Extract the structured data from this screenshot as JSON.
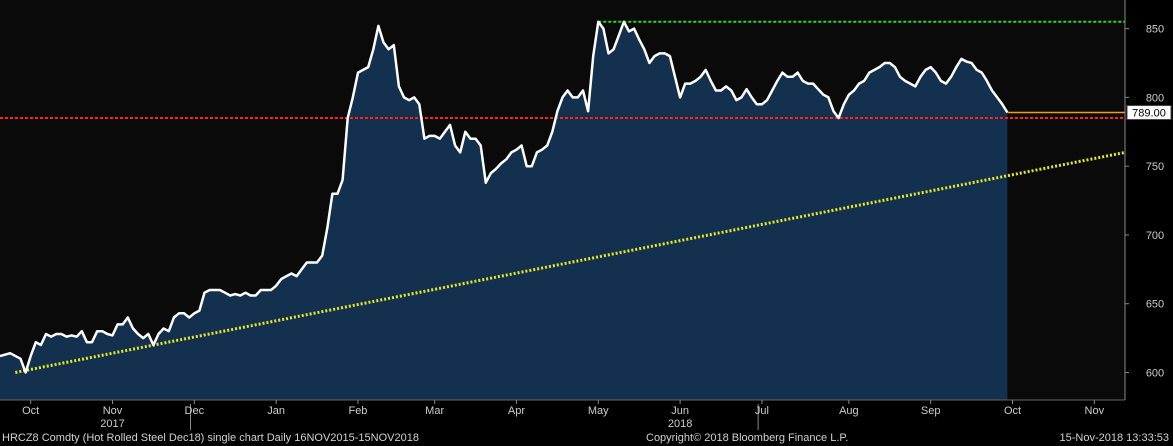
{
  "footer": {
    "left": "HRCZ8 Comdty (Hot Rolled Steel  Dec18) single chart  Daily 16NOV2015-15NOV2018",
    "center": "Copyright© 2018 Bloomberg Finance L.P.",
    "right": "15-Nov-2018 13:33:53"
  },
  "colors": {
    "background": "#000000",
    "plot_background": "#0a0a0a",
    "area_fill": "#14304f",
    "price_line": "#ffffff",
    "support_line": "#ff2020",
    "high_line": "#22dd22",
    "trend_line": "#e8e820",
    "last_marker": "#e8a020",
    "axis_text": "#cccccc"
  },
  "chart_data": {
    "type": "area",
    "series": [
      {
        "values": [
          [
            0,
            612
          ],
          [
            2,
            614
          ],
          [
            4,
            610
          ],
          [
            5,
            600
          ],
          [
            6,
            612
          ],
          [
            7,
            622
          ],
          [
            8,
            620
          ],
          [
            9,
            628
          ],
          [
            10,
            626
          ],
          [
            11,
            628
          ],
          [
            12,
            628
          ],
          [
            13,
            626
          ],
          [
            14,
            627
          ],
          [
            15,
            626
          ],
          [
            16,
            630
          ],
          [
            17,
            622
          ],
          [
            18,
            622
          ],
          [
            19,
            630
          ],
          [
            20,
            630
          ],
          [
            21,
            628
          ],
          [
            22,
            627
          ],
          [
            23,
            635
          ],
          [
            24,
            635
          ],
          [
            25,
            640
          ],
          [
            26,
            632
          ],
          [
            27,
            628
          ],
          [
            28,
            625
          ],
          [
            29,
            628
          ],
          [
            30,
            620
          ],
          [
            31,
            628
          ],
          [
            32,
            632
          ],
          [
            33,
            630
          ],
          [
            34,
            640
          ],
          [
            35,
            643
          ],
          [
            36,
            643
          ],
          [
            37,
            640
          ],
          [
            38,
            643
          ],
          [
            39,
            645
          ],
          [
            40,
            658
          ],
          [
            41,
            660
          ],
          [
            42,
            660
          ],
          [
            43,
            660
          ],
          [
            44,
            658
          ],
          [
            45,
            656
          ],
          [
            46,
            657
          ],
          [
            47,
            656
          ],
          [
            48,
            658
          ],
          [
            49,
            656
          ],
          [
            50,
            656
          ],
          [
            51,
            660
          ],
          [
            52,
            660
          ],
          [
            53,
            660
          ],
          [
            54,
            663
          ],
          [
            55,
            668
          ],
          [
            56,
            670
          ],
          [
            57,
            672
          ],
          [
            58,
            670
          ],
          [
            59,
            675
          ],
          [
            60,
            680
          ],
          [
            61,
            680
          ],
          [
            62,
            680
          ],
          [
            63,
            685
          ],
          [
            64,
            705
          ],
          [
            65,
            730
          ],
          [
            66,
            730
          ],
          [
            67,
            740
          ],
          [
            68,
            785
          ],
          [
            69,
            800
          ],
          [
            70,
            818
          ],
          [
            71,
            820
          ],
          [
            72,
            822
          ],
          [
            73,
            835
          ],
          [
            74,
            852
          ],
          [
            75,
            840
          ],
          [
            76,
            835
          ],
          [
            77,
            838
          ],
          [
            78,
            808
          ],
          [
            79,
            800
          ],
          [
            80,
            798
          ],
          [
            81,
            800
          ],
          [
            82,
            795
          ],
          [
            83,
            770
          ],
          [
            84,
            772
          ],
          [
            85,
            772
          ],
          [
            86,
            770
          ],
          [
            87,
            775
          ],
          [
            88,
            780
          ],
          [
            89,
            765
          ],
          [
            90,
            760
          ],
          [
            91,
            775
          ],
          [
            92,
            770
          ],
          [
            93,
            770
          ],
          [
            94,
            765
          ],
          [
            95,
            738
          ],
          [
            96,
            745
          ],
          [
            97,
            748
          ],
          [
            98,
            752
          ],
          [
            99,
            755
          ],
          [
            100,
            760
          ],
          [
            101,
            762
          ],
          [
            102,
            765
          ],
          [
            103,
            750
          ],
          [
            104,
            750
          ],
          [
            105,
            760
          ],
          [
            106,
            762
          ],
          [
            107,
            765
          ],
          [
            108,
            775
          ],
          [
            109,
            790
          ],
          [
            110,
            800
          ],
          [
            111,
            805
          ],
          [
            112,
            800
          ],
          [
            113,
            800
          ],
          [
            114,
            805
          ],
          [
            115,
            790
          ],
          [
            116,
            830
          ],
          [
            117,
            855
          ],
          [
            118,
            850
          ],
          [
            119,
            832
          ],
          [
            120,
            835
          ],
          [
            121,
            845
          ],
          [
            122,
            855
          ],
          [
            123,
            848
          ],
          [
            124,
            850
          ],
          [
            125,
            842
          ],
          [
            126,
            835
          ],
          [
            127,
            825
          ],
          [
            128,
            830
          ],
          [
            129,
            832
          ],
          [
            130,
            832
          ],
          [
            131,
            830
          ],
          [
            132,
            815
          ],
          [
            133,
            800
          ],
          [
            134,
            810
          ],
          [
            135,
            810
          ],
          [
            136,
            812
          ],
          [
            137,
            815
          ],
          [
            138,
            820
          ],
          [
            139,
            812
          ],
          [
            140,
            805
          ],
          [
            141,
            805
          ],
          [
            142,
            808
          ],
          [
            143,
            805
          ],
          [
            144,
            798
          ],
          [
            145,
            800
          ],
          [
            146,
            806
          ],
          [
            147,
            800
          ],
          [
            148,
            795
          ],
          [
            149,
            795
          ],
          [
            150,
            798
          ],
          [
            151,
            805
          ],
          [
            152,
            812
          ],
          [
            153,
            818
          ],
          [
            154,
            815
          ],
          [
            155,
            815
          ],
          [
            156,
            818
          ],
          [
            157,
            812
          ],
          [
            158,
            810
          ],
          [
            159,
            810
          ],
          [
            160,
            806
          ],
          [
            161,
            802
          ],
          [
            162,
            800
          ],
          [
            163,
            790
          ],
          [
            164,
            785
          ],
          [
            165,
            795
          ],
          [
            166,
            802
          ],
          [
            167,
            805
          ],
          [
            168,
            810
          ],
          [
            169,
            812
          ],
          [
            170,
            818
          ],
          [
            171,
            820
          ],
          [
            172,
            822
          ],
          [
            173,
            825
          ],
          [
            174,
            825
          ],
          [
            175,
            822
          ],
          [
            176,
            815
          ],
          [
            177,
            812
          ],
          [
            178,
            810
          ],
          [
            179,
            808
          ],
          [
            180,
            815
          ],
          [
            181,
            820
          ],
          [
            182,
            822
          ],
          [
            183,
            818
          ],
          [
            184,
            812
          ],
          [
            185,
            810
          ],
          [
            186,
            815
          ],
          [
            187,
            822
          ],
          [
            188,
            828
          ],
          [
            189,
            826
          ],
          [
            190,
            825
          ],
          [
            191,
            820
          ],
          [
            192,
            818
          ],
          [
            193,
            812
          ],
          [
            194,
            805
          ],
          [
            195,
            800
          ],
          [
            196,
            795
          ],
          [
            197,
            789
          ]
        ]
      }
    ],
    "x_ticks": [
      {
        "x": 6,
        "label": "Oct"
      },
      {
        "x": 22,
        "label": "Nov",
        "year": "2017"
      },
      {
        "x": 38,
        "label": "Dec"
      },
      {
        "x": 54,
        "label": "Jan"
      },
      {
        "x": 70,
        "label": "Feb"
      },
      {
        "x": 85,
        "label": "Mar"
      },
      {
        "x": 101,
        "label": "Apr"
      },
      {
        "x": 117,
        "label": "May"
      },
      {
        "x": 133,
        "label": "Jun",
        "year": "2018"
      },
      {
        "x": 149,
        "label": "Jul"
      },
      {
        "x": 166,
        "label": "Aug"
      },
      {
        "x": 182,
        "label": "Sep"
      },
      {
        "x": 198,
        "label": "Oct"
      },
      {
        "x": 214,
        "label": "Nov"
      }
    ],
    "xlim": [
      0,
      220
    ],
    "ylim": [
      580,
      865
    ],
    "y_ticks": [
      600,
      650,
      700,
      750,
      800,
      850
    ],
    "last_price": 789,
    "last_price_label": "789.00",
    "support_level": 785,
    "high_level": 855,
    "high_start_x": 117,
    "trend_from": [
      3,
      600
    ],
    "trend_to": [
      220,
      760
    ],
    "grid": false
  }
}
